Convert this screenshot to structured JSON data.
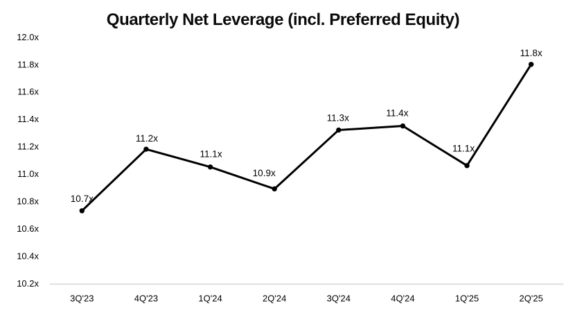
{
  "chart_data": {
    "type": "line",
    "title": "Quarterly Net Leverage (incl. Preferred Equity)",
    "categories": [
      "3Q'23",
      "4Q'23",
      "1Q'24",
      "2Q'24",
      "3Q'24",
      "4Q'24",
      "1Q'25",
      "2Q'25"
    ],
    "series": [
      {
        "values": [
          10.73,
          11.18,
          11.05,
          10.89,
          11.32,
          11.35,
          11.06,
          11.8
        ],
        "point_labels": [
          "10.7x",
          "11.2x",
          "11.1x",
          "10.9x",
          "11.3x",
          "11.4x",
          "11.1x",
          "11.8x"
        ],
        "color": "#000000",
        "marker": "circle",
        "line_width": 3
      }
    ],
    "xlabel": "",
    "ylabel": "",
    "ylim": [
      10.2,
      12.0
    ],
    "y_ticks": [
      {
        "value": 12.0,
        "label": "12.0x"
      },
      {
        "value": 11.8,
        "label": "11.8x"
      },
      {
        "value": 11.6,
        "label": "11.6x"
      },
      {
        "value": 11.4,
        "label": "11.4x"
      },
      {
        "value": 11.2,
        "label": "11.2x"
      },
      {
        "value": 11.0,
        "label": "11.0x"
      },
      {
        "value": 10.8,
        "label": "10.8x"
      },
      {
        "value": 10.6,
        "label": "10.6x"
      },
      {
        "value": 10.4,
        "label": "10.4x"
      },
      {
        "value": 10.2,
        "label": "10.2x"
      }
    ],
    "grid": false,
    "legend": "none",
    "axis_line_color": "#d6d6d6",
    "text_color": "#000000",
    "background": "#ffffff"
  }
}
